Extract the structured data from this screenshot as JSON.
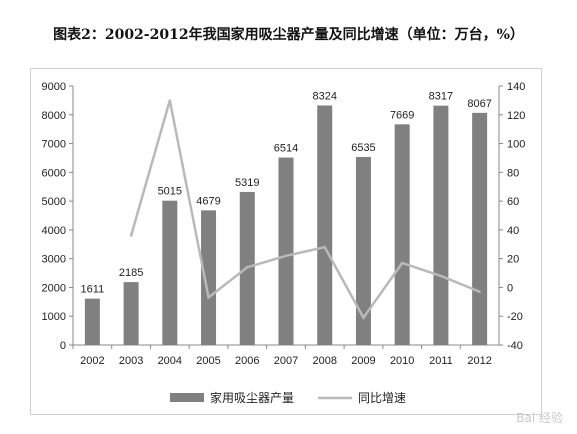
{
  "title": "图表2：2002-2012年我国家用吸尘器产量及同比增速（单位：万台，%）",
  "watermark": "Bai 经验",
  "colors": {
    "bar": "#808080",
    "line": "#b9b9b9",
    "axis": "#888888",
    "grid": "#d9d9d9"
  },
  "chart_data": {
    "type": "bar",
    "categories": [
      "2002",
      "2003",
      "2004",
      "2005",
      "2006",
      "2007",
      "2008",
      "2009",
      "2010",
      "2011",
      "2012"
    ],
    "series": [
      {
        "name": "家用吸尘器产量",
        "type": "bar",
        "axis": "left",
        "values": [
          1611,
          2185,
          5015,
          4679,
          5319,
          6514,
          8324,
          6535,
          7669,
          8317,
          8067
        ]
      },
      {
        "name": "同比增速",
        "type": "line",
        "axis": "right",
        "values": [
          null,
          36,
          130,
          -7,
          14,
          22,
          28,
          -21,
          17,
          8,
          -3
        ]
      }
    ],
    "ylim": [
      0,
      9000
    ],
    "yticks": [
      "0",
      "1000",
      "2000",
      "3000",
      "4000",
      "5000",
      "6000",
      "7000",
      "8000",
      "9000"
    ],
    "y2lim": [
      -40,
      140
    ],
    "y2ticks": [
      "-40",
      "-20",
      "0",
      "20",
      "40",
      "60",
      "80",
      "100",
      "120",
      "140"
    ],
    "data_labels": [
      "1611",
      "2185",
      "5015",
      "4679",
      "5319",
      "6514",
      "8324",
      "6535",
      "7669",
      "8317",
      "8067"
    ],
    "legend_position": "bottom",
    "grid": false
  }
}
